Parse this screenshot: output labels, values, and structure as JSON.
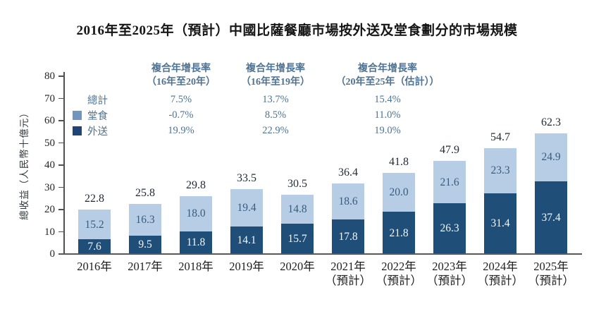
{
  "title": "2016年至2025年（預計）中國比薩餐廳市場按外送及堂食劃分的市場規模",
  "y_axis_label": "總收益（人民幣十億元）",
  "legend": {
    "total": "總計",
    "dine_in": "堂食",
    "delivery": "外送"
  },
  "cagr_table": {
    "columns": [
      {
        "header": "複合年增長率",
        "period": "（16年至20年）",
        "total": "7.5%",
        "dine_in": "-0.7%",
        "delivery": "19.9%"
      },
      {
        "header": "複合年增長率",
        "period": "（16年至19年）",
        "total": "13.7%",
        "dine_in": "8.5%",
        "delivery": "22.9%"
      },
      {
        "header": "複合年增長率",
        "period": "（20年至25年（估計））",
        "total": "15.4%",
        "dine_in": "11.0%",
        "delivery": "19.0%"
      }
    ]
  },
  "chart_data": {
    "type": "bar",
    "stacked": true,
    "title": "2016年至2025年（預計）中國比薩餐廳市場按外送及堂食劃分的市場規模",
    "xlabel": "",
    "ylabel": "總收益（人民幣十億元）",
    "ylim": [
      0,
      80
    ],
    "y_ticks": [
      0,
      10,
      20,
      30,
      40,
      50,
      60,
      70,
      80
    ],
    "grid": false,
    "legend_position": "top-left",
    "categories": [
      "2016年",
      "2017年",
      "2018年",
      "2019年",
      "2020年",
      "2021年",
      "2022年",
      "2023年",
      "2024年",
      "2025年"
    ],
    "category_sublabels": [
      "",
      "",
      "",
      "",
      "",
      "（預計）",
      "（預計）",
      "（預計）",
      "（預計）",
      "（預計）"
    ],
    "series": [
      {
        "name": "外送",
        "color": "#1F4E79",
        "values": [
          7.6,
          9.5,
          11.8,
          14.1,
          15.7,
          17.8,
          21.8,
          26.3,
          31.4,
          37.4
        ]
      },
      {
        "name": "堂食",
        "color": "#B7CDE5",
        "values": [
          15.2,
          16.3,
          18.0,
          19.4,
          14.8,
          18.6,
          20.0,
          21.6,
          23.3,
          24.9
        ]
      }
    ],
    "totals": [
      22.8,
      25.8,
      29.8,
      33.5,
      30.5,
      36.4,
      41.8,
      47.9,
      54.7,
      62.3
    ]
  },
  "colors": {
    "dine_in_bar": "#B7CDE5",
    "delivery_bar": "#1F4E79",
    "dine_in_swatch": "#6F96BF",
    "delivery_swatch": "#1E4575",
    "cagr_text": "#4F7392",
    "total_label": "#222C38",
    "axis_line": "#595959"
  }
}
